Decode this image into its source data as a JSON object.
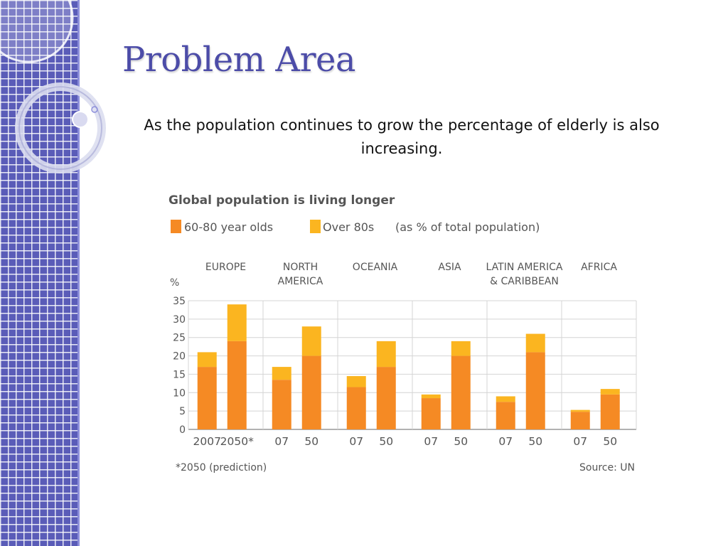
{
  "slide": {
    "title": "Problem Area",
    "subtitle": "As the population continues to grow the percentage of elderly is also increasing."
  },
  "chart_data": {
    "type": "bar",
    "stacked": true,
    "title": "Global population is living longer",
    "legend": [
      {
        "label": "60-80 year olds",
        "color": "#f58a24"
      },
      {
        "label": "Over 80s",
        "color": "#fbb520"
      }
    ],
    "legend_note": "(as % of total population)",
    "ylabel": "%",
    "ylim": [
      0,
      35
    ],
    "yticks": [
      0,
      5,
      10,
      15,
      20,
      25,
      30,
      35
    ],
    "grid": true,
    "regions": [
      {
        "name": [
          "EUROPE"
        ],
        "bars": [
          {
            "x": "2007",
            "age_60_80": 17,
            "over_80": 4
          },
          {
            "x": "2050*",
            "age_60_80": 24,
            "over_80": 10
          }
        ]
      },
      {
        "name": [
          "NORTH",
          "AMERICA"
        ],
        "bars": [
          {
            "x": "07",
            "age_60_80": 13.5,
            "over_80": 3.5
          },
          {
            "x": "50",
            "age_60_80": 20,
            "over_80": 8
          }
        ]
      },
      {
        "name": [
          "OCEANIA"
        ],
        "bars": [
          {
            "x": "07",
            "age_60_80": 11.5,
            "over_80": 3
          },
          {
            "x": "50",
            "age_60_80": 17,
            "over_80": 7
          }
        ]
      },
      {
        "name": [
          "ASIA"
        ],
        "bars": [
          {
            "x": "07",
            "age_60_80": 8.5,
            "over_80": 1
          },
          {
            "x": "50",
            "age_60_80": 20,
            "over_80": 4
          }
        ]
      },
      {
        "name": [
          "LATIN AMERICA",
          "& CARIBBEAN"
        ],
        "bars": [
          {
            "x": "07",
            "age_60_80": 7.5,
            "over_80": 1.5
          },
          {
            "x": "50",
            "age_60_80": 21,
            "over_80": 5
          }
        ]
      },
      {
        "name": [
          "AFRICA"
        ],
        "bars": [
          {
            "x": "07",
            "age_60_80": 4.8,
            "over_80": 0.5
          },
          {
            "x": "50",
            "age_60_80": 9.5,
            "over_80": 1.5
          }
        ]
      }
    ],
    "footnote": "*2050 (prediction)",
    "source": "Source: UN"
  }
}
